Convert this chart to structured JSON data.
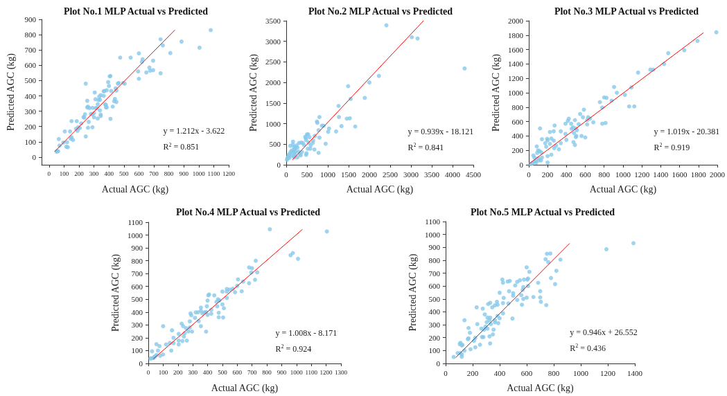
{
  "chart_data": [
    {
      "type": "scatter",
      "title": "Plot No.1 MLP Actual vs Predicted",
      "xlabel": "Actual AGC (kg)",
      "ylabel": "Predicted AGC (kg)",
      "xlim": [
        -50,
        1200
      ],
      "ylim": [
        -50,
        900
      ],
      "xticks": [
        0,
        100,
        200,
        300,
        400,
        500,
        600,
        700,
        800,
        900,
        1000,
        1100,
        1200
      ],
      "yticks": [
        0,
        100,
        200,
        300,
        400,
        500,
        600,
        700,
        800,
        900
      ],
      "grid": false,
      "marker": "circle",
      "annotations": [
        "y = 1.212x - 3.622",
        "R$^{2}$ = 0.851"
      ],
      "series": [
        {
          "color": "#87c8ea",
          "x": [
            1080,
            885,
            1005,
            745,
            760,
            810,
            600,
            620,
            625,
            695,
            670,
            675,
            695,
            650,
            745,
            595,
            600,
            545,
            475,
            495,
            505,
            460,
            465,
            445,
            450,
            450,
            440,
            435,
            425,
            410,
            405,
            395,
            400,
            415,
            385,
            365,
            370,
            345,
            335,
            340,
            330,
            305,
            365,
            375,
            380,
            380,
            385,
            410,
            310,
            320,
            325,
            340,
            345,
            345,
            310,
            300,
            290,
            290,
            270,
            260,
            255,
            255,
            245,
            240,
            230,
            235,
            280,
            300,
            325,
            290,
            265,
            260,
            245,
            215,
            205,
            195,
            190,
            180,
            185,
            150,
            140,
            105,
            150,
            145,
            160,
            120,
            115,
            125,
            95,
            70,
            65,
            55,
            60,
            50
          ],
          "values": [
            830,
            755,
            715,
            770,
            730,
            680,
            678,
            622,
            640,
            630,
            585,
            565,
            568,
            553,
            548,
            560,
            512,
            650,
            650,
            485,
            480,
            480,
            485,
            450,
            435,
            360,
            380,
            365,
            330,
            530,
            528,
            490,
            465,
            432,
            437,
            430,
            432,
            405,
            395,
            375,
            372,
            422,
            400,
            345,
            340,
            325,
            325,
            250,
            378,
            320,
            345,
            305,
            278,
            268,
            320,
            288,
            280,
            322,
            320,
            330,
            325,
            368,
            480,
            280,
            262,
            258,
            282,
            260,
            252,
            195,
            230,
            192,
            135,
            220,
            190,
            195,
            172,
            185,
            235,
            235,
            168,
            168,
            130,
            120,
            112,
            97,
            68,
            65,
            95,
            75,
            118,
            40,
            38,
            35
          ]
        },
        {
          "type": "line",
          "marker": "none",
          "color": "#ff0000",
          "x": [
            37,
            841
          ],
          "values": [
            36,
            831
          ]
        }
      ]
    },
    {
      "type": "scatter",
      "title": "Plot No.2 MLP Actual vs Predicted",
      "xlabel": "Actual AGC (kg)",
      "ylabel": "Predicted AGC (kg)",
      "xlim": [
        0,
        4500
      ],
      "ylim": [
        0,
        3500
      ],
      "xticks": [
        0,
        500,
        1000,
        1500,
        2000,
        2500,
        3000,
        3500,
        4000,
        4500
      ],
      "yticks": [
        0,
        500,
        1000,
        1500,
        2000,
        2500,
        3000,
        3500
      ],
      "grid": false,
      "marker": "circle",
      "annotations": [
        "y = 0.939x - 18.121",
        "R$^{2}$ = 0.841"
      ],
      "series": [
        {
          "color": "#87c8ea",
          "x": [
            2410,
            3020,
            3160,
            4290,
            2230,
            2000,
            1490,
            1550,
            1890,
            1260,
            1270,
            1460,
            1530,
            1330,
            1660,
            1030,
            1010,
            1200,
            950,
            800,
            740,
            750,
            860,
            900,
            780,
            800,
            780,
            690,
            680,
            650,
            640,
            560,
            500,
            530,
            460,
            470,
            480,
            540,
            590,
            580,
            520,
            490,
            480,
            430,
            400,
            360,
            310,
            270,
            250,
            380,
            350,
            300,
            330,
            270,
            230,
            200,
            210,
            200,
            190,
            165,
            160,
            170,
            140,
            120,
            100,
            90,
            80,
            60,
            40,
            30,
            20,
            110,
            210,
            180,
            230,
            60
          ],
          "values": [
            3390,
            3100,
            3070,
            2340,
            2160,
            2000,
            1910,
            1600,
            1625,
            1430,
            1160,
            1120,
            1130,
            940,
            930,
            880,
            800,
            810,
            510,
            1160,
            1050,
            1020,
            950,
            950,
            840,
            660,
            290,
            700,
            370,
            590,
            530,
            670,
            740,
            740,
            680,
            650,
            600,
            540,
            470,
            390,
            390,
            280,
            240,
            480,
            530,
            540,
            530,
            420,
            470,
            310,
            230,
            320,
            260,
            180,
            330,
            380,
            250,
            180,
            430,
            560,
            490,
            300,
            350,
            230,
            460,
            270,
            170,
            240,
            180,
            150,
            120,
            320,
            290,
            200,
            420,
            200
          ]
        },
        {
          "type": "line",
          "marker": "none",
          "color": "#ff0000",
          "x": [
            151,
            3303
          ],
          "values": [
            120,
            3500
          ]
        }
      ]
    },
    {
      "type": "scatter",
      "title": "Plot No.3 MLP Actual vs Predicted",
      "xlabel": "Actual AGC (kg)",
      "ylabel": "Predicted AGC (kg)",
      "xlim": [
        0,
        2000
      ],
      "ylim": [
        0,
        2000
      ],
      "xticks": [
        0,
        200,
        400,
        600,
        800,
        1000,
        1200,
        1400,
        1600,
        1800,
        2000
      ],
      "yticks": [
        0,
        200,
        400,
        600,
        800,
        1000,
        1200,
        1400,
        1600,
        1800,
        2000
      ],
      "grid": false,
      "marker": "circle",
      "annotations": [
        "y = 1.019x - 20.381",
        "R$^{2}$ = 0.919"
      ],
      "series": [
        {
          "color": "#87c8ea",
          "x": [
            1990,
            1790,
            1650,
            1480,
            1435,
            1290,
            1320,
            1160,
            1090,
            1120,
            1065,
            1020,
            935,
            905,
            880,
            800,
            825,
            755,
            780,
            780,
            815,
            685,
            650,
            630,
            620,
            620,
            600,
            560,
            575,
            585,
            545,
            530,
            500,
            510,
            505,
            500,
            490,
            490,
            475,
            480,
            470,
            455,
            450,
            425,
            415,
            390,
            390,
            400,
            340,
            340,
            320,
            290,
            275,
            265,
            265,
            270,
            240,
            225,
            225,
            200,
            195,
            175,
            185,
            200,
            240,
            200,
            140,
            120,
            135,
            140,
            130,
            115,
            100,
            100,
            85,
            90,
            75,
            60,
            50,
            40,
            80,
            110,
            60,
            20
          ],
          "values": [
            1840,
            1720,
            1590,
            1550,
            1400,
            1320,
            1320,
            1280,
            1075,
            810,
            810,
            970,
            1000,
            1080,
            890,
            935,
            930,
            870,
            795,
            570,
            580,
            590,
            640,
            660,
            560,
            620,
            380,
            400,
            660,
            765,
            705,
            565,
            505,
            480,
            400,
            385,
            620,
            275,
            315,
            440,
            520,
            500,
            570,
            640,
            610,
            570,
            430,
            345,
            465,
            300,
            215,
            265,
            545,
            465,
            335,
            230,
            365,
            455,
            290,
            340,
            360,
            300,
            250,
            120,
            140,
            30,
            355,
            505,
            170,
            100,
            60,
            190,
            200,
            90,
            255,
            165,
            50,
            100,
            130,
            20,
            30,
            60,
            40,
            10
          ]
        },
        {
          "type": "line",
          "marker": "none",
          "color": "#ff0000",
          "x": [
            0,
            1853
          ],
          "values": [
            10,
            1833
          ]
        }
      ]
    },
    {
      "type": "scatter",
      "title": "Plot No.4 MLP Actual vs Predicted",
      "xlabel": "Actual AGC (kg)",
      "ylabel": "Predicted AGC (kg)",
      "xlim": [
        0,
        1300
      ],
      "ylim": [
        0,
        1100
      ],
      "xticks": [
        0,
        100,
        200,
        300,
        400,
        500,
        600,
        700,
        800,
        900,
        1000,
        1100,
        1200,
        1300
      ],
      "yticks": [
        0,
        100,
        200,
        300,
        400,
        500,
        600,
        700,
        800,
        900,
        1000,
        1100
      ],
      "grid": false,
      "marker": "circle",
      "annotations": [
        "y = 1.008x - 8.171",
        "R$^{2}$ = 0.924"
      ],
      "series": [
        {
          "color": "#87c8ea",
          "x": [
            820,
            1205,
            960,
            975,
            1010,
            725,
            680,
            700,
            695,
            735,
            720,
            605,
            680,
            640,
            630,
            600,
            585,
            570,
            550,
            530,
            530,
            530,
            500,
            500,
            510,
            505,
            475,
            475,
            470,
            465,
            460,
            480,
            445,
            410,
            405,
            425,
            425,
            400,
            395,
            400,
            390,
            390,
            380,
            355,
            355,
            355,
            365,
            335,
            340,
            320,
            315,
            285,
            290,
            280,
            280,
            295,
            270,
            255,
            260,
            245,
            240,
            235,
            225,
            230,
            205,
            205,
            205,
            170,
            160,
            170,
            155,
            145,
            120,
            100,
            100,
            75,
            65,
            80,
            55,
            55,
            40,
            25,
            20,
            15,
            35,
            45
          ],
          "values": [
            1045,
            1028,
            843,
            860,
            815,
            800,
            748,
            742,
            708,
            710,
            652,
            655,
            625,
            638,
            562,
            605,
            555,
            582,
            575,
            580,
            560,
            510,
            560,
            460,
            430,
            358,
            395,
            360,
            500,
            445,
            480,
            490,
            530,
            538,
            530,
            418,
            388,
            490,
            445,
            378,
            400,
            248,
            398,
            435,
            410,
            290,
            390,
            398,
            330,
            398,
            355,
            390,
            375,
            328,
            280,
            248,
            250,
            275,
            178,
            235,
            210,
            290,
            310,
            175,
            230,
            178,
            148,
            200,
            258,
            158,
            100,
            160,
            148,
            290,
            70,
            135,
            100,
            60,
            150,
            65,
            50,
            95,
            40,
            38,
            42,
            55
          ]
        },
        {
          "type": "line",
          "marker": "none",
          "color": "#ff0000",
          "x": [
            33,
            1040
          ],
          "values": [
            35,
            1044
          ]
        }
      ]
    },
    {
      "type": "scatter",
      "title": "Plot No.5 MLP Actual vs Predicted",
      "xlabel": "Actual AGC (kg)",
      "ylabel": "Predicted AGC (kg)",
      "xlim": [
        0,
        1400
      ],
      "ylim": [
        0,
        1100
      ],
      "xticks": [
        0,
        200,
        400,
        600,
        800,
        1000,
        1200,
        1400
      ],
      "yticks": [
        0,
        100,
        200,
        300,
        400,
        500,
        600,
        700,
        800,
        900,
        1000,
        1100
      ],
      "grid": false,
      "marker": "circle",
      "annotations": [
        "y = 0.946x + 26.552",
        "R$^{2}$ = 0.436"
      ],
      "series": [
        {
          "color": "#87c8ea",
          "x": [
            1390,
            1190,
            850,
            740,
            750,
            775,
            760,
            820,
            780,
            810,
            685,
            700,
            700,
            705,
            745,
            650,
            620,
            600,
            605,
            610,
            610,
            580,
            575,
            570,
            560,
            565,
            575,
            600,
            550,
            530,
            515,
            500,
            500,
            530,
            495,
            475,
            460,
            420,
            425,
            470,
            465,
            430,
            425,
            425,
            400,
            380,
            385,
            385,
            390,
            400,
            365,
            365,
            365,
            355,
            350,
            345,
            335,
            330,
            315,
            325,
            330,
            310,
            305,
            310,
            290,
            295,
            275,
            265,
            270,
            280,
            285,
            325,
            330,
            255,
            230,
            235,
            220,
            210,
            220,
            180,
            170,
            170,
            165,
            185,
            140,
            140,
            125,
            120,
            110,
            105,
            110,
            120,
            120,
            90,
            60
          ],
          "values": [
            932,
            885,
            805,
            808,
            850,
            852,
            785,
            718,
            662,
            615,
            625,
            560,
            512,
            478,
            452,
            515,
            710,
            745,
            650,
            658,
            600,
            650,
            592,
            570,
            530,
            455,
            500,
            510,
            645,
            632,
            605,
            545,
            525,
            492,
            348,
            640,
            635,
            650,
            626,
            560,
            465,
            508,
            468,
            388,
            548,
            478,
            455,
            368,
            312,
            350,
            450,
            335,
            318,
            262,
            225,
            435,
            305,
            470,
            460,
            335,
            355,
            355,
            320,
            270,
            380,
            285,
            425,
            270,
            205,
            205,
            262,
            210,
            155,
            145,
            435,
            305,
            198,
            175,
            125,
            238,
            275,
            195,
            188,
            110,
            335,
            100,
            145,
            140,
            160,
            150,
            80,
            70,
            52,
            80,
            50
          ]
        },
        {
          "type": "line",
          "marker": "none",
          "color": "#ff0000",
          "x": [
            76,
            918
          ],
          "values": [
            46,
            931
          ]
        }
      ]
    }
  ]
}
